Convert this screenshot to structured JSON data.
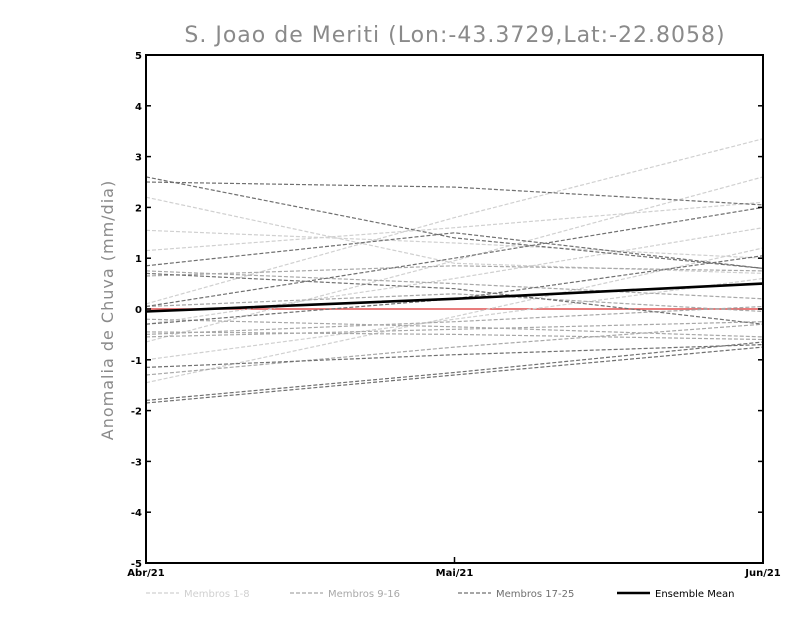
{
  "chart_data": {
    "type": "line",
    "title": "S. Joao de Meriti (Lon:-43.3729,Lat:-22.8058)",
    "xlabel": "",
    "ylabel": "Anomalia de Chuva (mm/dia)",
    "categories": [
      "Abr/21",
      "Mai/21",
      "Jun/21"
    ],
    "ylim": [
      -5,
      5
    ],
    "yticks": [
      "-5",
      "-4",
      "-3",
      "-2",
      "-1",
      "0",
      "1",
      "2",
      "3",
      "4",
      "5"
    ],
    "grid": false,
    "zero_line_color": "#e05050",
    "legend": [
      {
        "label": "Membros 1-8",
        "color": "#d0d0d0",
        "style": "dashed"
      },
      {
        "label": "Membros 9-16",
        "color": "#a8a8a8",
        "style": "dashed"
      },
      {
        "label": "Membros 17-25",
        "color": "#707070",
        "style": "dashed"
      },
      {
        "label": "Ensemble Mean",
        "color": "#000000",
        "style": "solid"
      }
    ],
    "series": [
      {
        "name": "Membro 1",
        "group": 1,
        "values": [
          0.1,
          1.8,
          3.35
        ]
      },
      {
        "name": "Membro 2",
        "group": 1,
        "values": [
          2.2,
          0.9,
          0.7
        ]
      },
      {
        "name": "Membro 3",
        "group": 1,
        "values": [
          1.55,
          1.3,
          1.0
        ]
      },
      {
        "name": "Membro 4",
        "group": 1,
        "values": [
          -0.65,
          0.95,
          2.6
        ]
      },
      {
        "name": "Membro 5",
        "group": 1,
        "values": [
          -1.0,
          -0.2,
          0.6
        ]
      },
      {
        "name": "Membro 6",
        "group": 1,
        "values": [
          -1.45,
          -0.15,
          1.2
        ]
      },
      {
        "name": "Membro 7",
        "group": 1,
        "values": [
          1.15,
          1.6,
          2.1
        ]
      },
      {
        "name": "Membro 8",
        "group": 1,
        "values": [
          -0.3,
          0.6,
          1.6
        ]
      },
      {
        "name": "Membro 9",
        "group": 2,
        "values": [
          0.75,
          0.5,
          0.2
        ]
      },
      {
        "name": "Membro 10",
        "group": 2,
        "values": [
          -0.2,
          -0.35,
          -0.55
        ]
      },
      {
        "name": "Membro 11",
        "group": 2,
        "values": [
          0.05,
          0.3,
          -0.05
        ]
      },
      {
        "name": "Membro 12",
        "group": 2,
        "values": [
          -0.5,
          -0.25,
          0.05
        ]
      },
      {
        "name": "Membro 13",
        "group": 2,
        "values": [
          -1.3,
          -0.75,
          -0.3
        ]
      },
      {
        "name": "Membro 14",
        "group": 2,
        "values": [
          0.65,
          0.85,
          0.75
        ]
      },
      {
        "name": "Membro 15",
        "group": 2,
        "values": [
          -0.45,
          -0.5,
          -0.6
        ]
      },
      {
        "name": "Membro 16",
        "group": 2,
        "values": [
          -0.55,
          -0.4,
          -0.25
        ]
      },
      {
        "name": "Membro 17",
        "group": 3,
        "values": [
          2.6,
          1.4,
          0.8
        ]
      },
      {
        "name": "Membro 18",
        "group": 3,
        "values": [
          2.5,
          2.4,
          2.05
        ]
      },
      {
        "name": "Membro 19",
        "group": 3,
        "values": [
          0.85,
          1.5,
          0.8
        ]
      },
      {
        "name": "Membro 20",
        "group": 3,
        "values": [
          0.05,
          1.0,
          2.0
        ]
      },
      {
        "name": "Membro 21",
        "group": 3,
        "values": [
          -1.8,
          -1.25,
          -0.65
        ]
      },
      {
        "name": "Membro 22",
        "group": 3,
        "values": [
          -1.85,
          -1.3,
          -0.75
        ]
      },
      {
        "name": "Membro 23",
        "group": 3,
        "values": [
          -1.15,
          -0.9,
          -0.7
        ]
      },
      {
        "name": "Membro 24",
        "group": 3,
        "values": [
          0.7,
          0.4,
          -0.3
        ]
      },
      {
        "name": "Membro 25",
        "group": 3,
        "values": [
          -0.3,
          0.2,
          1.05
        ]
      }
    ],
    "ensemble_mean": {
      "name": "Ensemble Mean",
      "values": [
        -0.05,
        0.2,
        0.5
      ]
    }
  }
}
